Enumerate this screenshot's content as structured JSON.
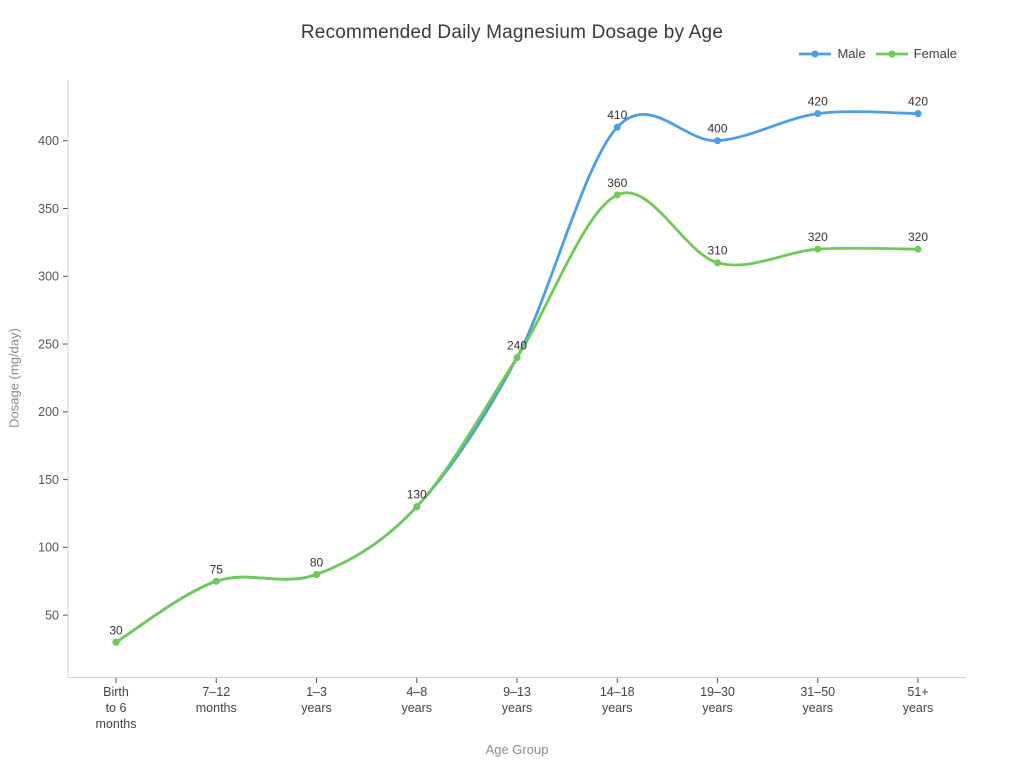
{
  "title": "Recommended Daily Magnesium Dosage by Age",
  "chart_data": {
    "type": "line",
    "title": "Recommended Daily Magnesium Dosage by Age",
    "xlabel": "Age Group",
    "ylabel": "Dosage (mg/day)",
    "curve": "spline",
    "grid": false,
    "legend_position": "top-right",
    "ylim": [
      0,
      445
    ],
    "yticks": [
      50,
      100,
      150,
      200,
      250,
      300,
      350,
      400
    ],
    "categories": [
      [
        "Birth",
        "to 6",
        "months"
      ],
      [
        "7–12",
        "months"
      ],
      [
        "1–3",
        "years"
      ],
      [
        "4–8",
        "years"
      ],
      [
        "9–13",
        "years"
      ],
      [
        "14–18",
        "years"
      ],
      [
        "19–30",
        "years"
      ],
      [
        "31–50",
        "years"
      ],
      [
        "51+",
        "years"
      ]
    ],
    "series": [
      {
        "name": "Male",
        "color": "#4B9EE8",
        "values": [
          30,
          75,
          80,
          130,
          240,
          410,
          400,
          420,
          420
        ],
        "label_indices": [
          5,
          6,
          7,
          8
        ]
      },
      {
        "name": "Female",
        "color": "#6FCB55",
        "values": [
          30,
          75,
          80,
          130,
          240,
          360,
          310,
          320,
          320
        ],
        "label_indices": [
          0,
          1,
          2,
          3,
          4,
          5,
          6,
          7,
          8
        ]
      }
    ]
  }
}
